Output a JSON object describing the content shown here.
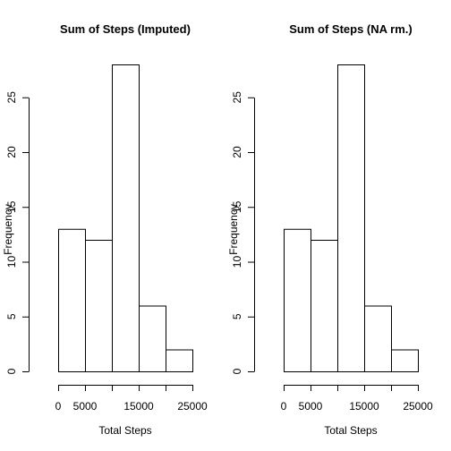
{
  "chart_data": [
    {
      "type": "bar",
      "title": "Sum of Steps (Imputed)",
      "xlabel": "Total Steps",
      "ylabel": "Frequency",
      "bins": [
        [
          0,
          5000
        ],
        [
          5000,
          10000
        ],
        [
          10000,
          15000
        ],
        [
          15000,
          20000
        ],
        [
          20000,
          25000
        ]
      ],
      "values": [
        13,
        12,
        28,
        6,
        2
      ],
      "xlim": [
        0,
        25000
      ],
      "ylim": [
        0,
        28
      ],
      "xticks": [
        0,
        5000,
        15000,
        25000
      ],
      "xtick_positions": [
        0,
        5000,
        10000,
        15000,
        20000,
        25000
      ],
      "yticks": [
        0,
        5,
        10,
        15,
        20,
        25
      ],
      "grid": false,
      "color": "#ffffff",
      "edge_color": "#000000"
    },
    {
      "type": "bar",
      "title": "Sum of Steps (NA rm.)",
      "xlabel": "Total Steps",
      "ylabel": "Frequency",
      "bins": [
        [
          0,
          5000
        ],
        [
          5000,
          10000
        ],
        [
          10000,
          15000
        ],
        [
          15000,
          20000
        ],
        [
          20000,
          25000
        ]
      ],
      "values": [
        13,
        12,
        28,
        6,
        2
      ],
      "xlim": [
        0,
        25000
      ],
      "ylim": [
        0,
        28
      ],
      "xticks": [
        0,
        5000,
        15000,
        25000
      ],
      "xtick_positions": [
        0,
        5000,
        10000,
        15000,
        20000,
        25000
      ],
      "yticks": [
        0,
        5,
        10,
        15,
        20,
        25
      ],
      "grid": false,
      "color": "#ffffff",
      "edge_color": "#000000"
    }
  ]
}
